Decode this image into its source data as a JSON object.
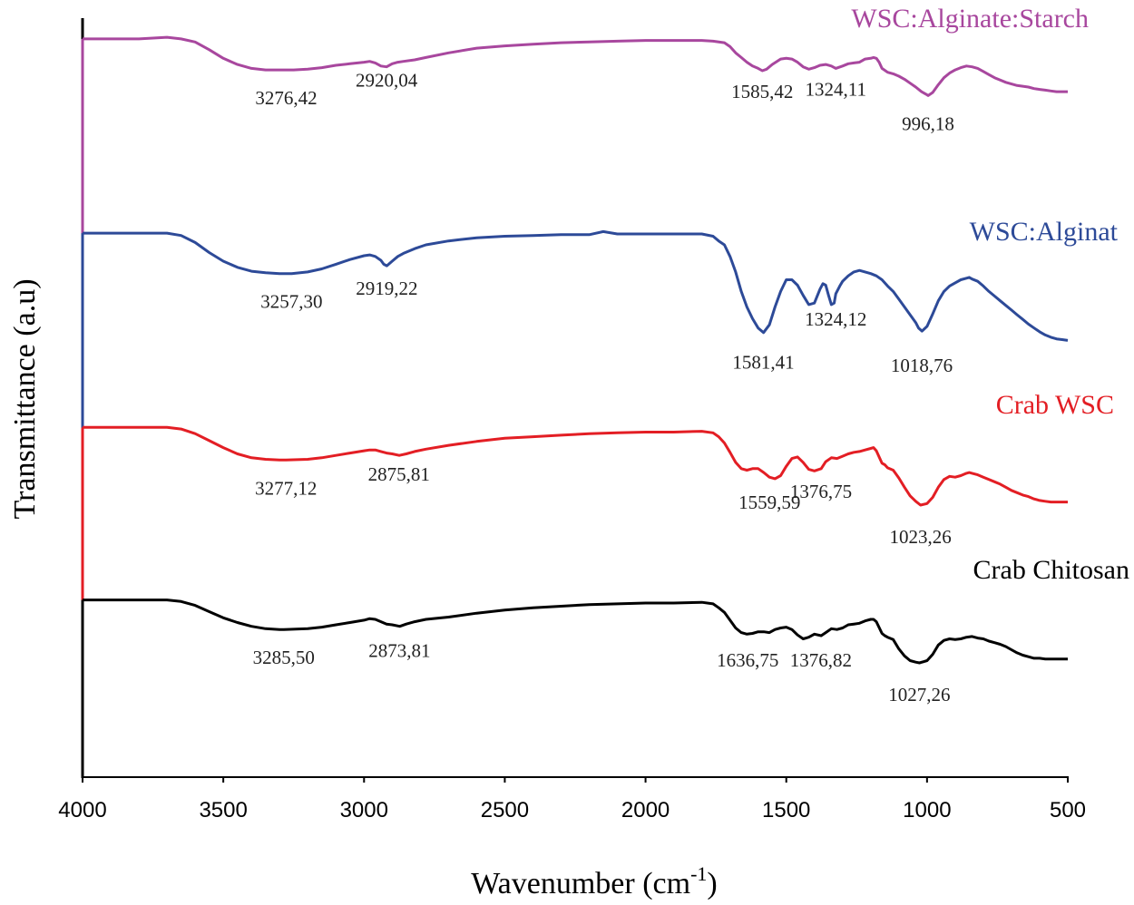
{
  "chart_data": {
    "type": "line",
    "title": "",
    "xlabel": "Wavenumber (cm",
    "xlabel_sup": "-1",
    "xlabel_end": ")",
    "ylabel": "Transmittance (a.u)",
    "xlim": [
      4000,
      500
    ],
    "x_reversed": true,
    "x_ticks": [
      4000,
      3500,
      3000,
      2500,
      2000,
      1500,
      1000,
      500
    ],
    "x_tick_labels": [
      "4000",
      "3500",
      "3000",
      "2500",
      "2000",
      "1500",
      "1000",
      "500"
    ],
    "ylim": [
      0,
      1
    ],
    "grid": false,
    "series": [
      {
        "name": "WSC:Alginate:Starch",
        "color": "#a8479e",
        "x": [
          4000,
          3900,
          3800,
          3700,
          3650,
          3600,
          3550,
          3500,
          3450,
          3400,
          3350,
          3300,
          3250,
          3200,
          3150,
          3100,
          3050,
          3000,
          2980,
          2960,
          2940,
          2920,
          2900,
          2880,
          2860,
          2820,
          2780,
          2700,
          2600,
          2500,
          2400,
          2300,
          2200,
          2100,
          2000,
          1900,
          1800,
          1760,
          1720,
          1700,
          1680,
          1660,
          1640,
          1620,
          1600,
          1585,
          1570,
          1550,
          1520,
          1500,
          1480,
          1460,
          1440,
          1420,
          1400,
          1380,
          1360,
          1340,
          1324,
          1300,
          1280,
          1260,
          1240,
          1220,
          1200,
          1190,
          1180,
          1170,
          1160,
          1140,
          1120,
          1100,
          1080,
          1060,
          1040,
          1020,
          1000,
          996,
          980,
          960,
          940,
          920,
          900,
          880,
          860,
          840,
          820,
          800,
          780,
          760,
          740,
          720,
          700,
          680,
          660,
          640,
          620,
          600,
          580,
          560,
          540,
          520,
          500
        ],
        "y": [
          0.95,
          0.95,
          0.95,
          0.952,
          0.95,
          0.946,
          0.936,
          0.925,
          0.917,
          0.912,
          0.91,
          0.91,
          0.91,
          0.911,
          0.913,
          0.916,
          0.918,
          0.92,
          0.921,
          0.919,
          0.915,
          0.914,
          0.918,
          0.92,
          0.921,
          0.923,
          0.926,
          0.932,
          0.938,
          0.941,
          0.943,
          0.945,
          0.946,
          0.947,
          0.948,
          0.948,
          0.948,
          0.947,
          0.945,
          0.94,
          0.932,
          0.926,
          0.92,
          0.915,
          0.912,
          0.909,
          0.911,
          0.917,
          0.924,
          0.925,
          0.924,
          0.92,
          0.914,
          0.911,
          0.913,
          0.916,
          0.917,
          0.915,
          0.912,
          0.915,
          0.918,
          0.919,
          0.92,
          0.924,
          0.925,
          0.926,
          0.925,
          0.92,
          0.912,
          0.907,
          0.905,
          0.902,
          0.898,
          0.893,
          0.888,
          0.882,
          0.878,
          0.877,
          0.881,
          0.891,
          0.9,
          0.906,
          0.91,
          0.913,
          0.915,
          0.914,
          0.912,
          0.908,
          0.904,
          0.9,
          0.897,
          0.894,
          0.892,
          0.89,
          0.889,
          0.888,
          0.886,
          0.885,
          0.884,
          0.883,
          0.882,
          0.882,
          0.882
        ],
        "peaks": [
          {
            "x": 3276.42,
            "label": "3276,42"
          },
          {
            "x": 2920.04,
            "label": "2920,04"
          },
          {
            "x": 1585.42,
            "label": "1585,42"
          },
          {
            "x": 1324.11,
            "label": "1324,11"
          },
          {
            "x": 996.18,
            "label": "996,18"
          }
        ]
      },
      {
        "name": "WSC:Alginat",
        "color": "#2d4a98",
        "x": [
          4000,
          3900,
          3800,
          3700,
          3650,
          3600,
          3550,
          3500,
          3450,
          3400,
          3350,
          3300,
          3257,
          3200,
          3150,
          3100,
          3050,
          3000,
          2980,
          2960,
          2940,
          2930,
          2919,
          2900,
          2880,
          2860,
          2820,
          2780,
          2700,
          2600,
          2500,
          2400,
          2300,
          2200,
          2150,
          2100,
          2000,
          1900,
          1800,
          1760,
          1740,
          1720,
          1700,
          1680,
          1660,
          1640,
          1620,
          1600,
          1581,
          1560,
          1540,
          1520,
          1500,
          1480,
          1460,
          1440,
          1420,
          1400,
          1380,
          1370,
          1360,
          1350,
          1340,
          1330,
          1324,
          1310,
          1300,
          1280,
          1260,
          1240,
          1220,
          1200,
          1180,
          1160,
          1140,
          1120,
          1100,
          1080,
          1060,
          1040,
          1030,
          1018,
          1000,
          980,
          960,
          940,
          920,
          900,
          880,
          860,
          850,
          840,
          820,
          800,
          780,
          760,
          740,
          720,
          700,
          680,
          660,
          640,
          620,
          600,
          580,
          560,
          540,
          520,
          500
        ],
        "y": [
          0.7,
          0.7,
          0.7,
          0.7,
          0.697,
          0.688,
          0.675,
          0.664,
          0.656,
          0.651,
          0.649,
          0.648,
          0.648,
          0.65,
          0.654,
          0.66,
          0.666,
          0.671,
          0.672,
          0.67,
          0.665,
          0.66,
          0.658,
          0.664,
          0.67,
          0.674,
          0.68,
          0.685,
          0.69,
          0.694,
          0.696,
          0.697,
          0.698,
          0.698,
          0.702,
          0.699,
          0.699,
          0.699,
          0.699,
          0.696,
          0.69,
          0.685,
          0.67,
          0.65,
          0.625,
          0.605,
          0.59,
          0.578,
          0.572,
          0.582,
          0.605,
          0.625,
          0.64,
          0.64,
          0.633,
          0.62,
          0.608,
          0.61,
          0.628,
          0.635,
          0.633,
          0.62,
          0.608,
          0.61,
          0.622,
          0.632,
          0.638,
          0.645,
          0.65,
          0.652,
          0.65,
          0.648,
          0.645,
          0.64,
          0.632,
          0.625,
          0.615,
          0.605,
          0.595,
          0.585,
          0.578,
          0.574,
          0.58,
          0.596,
          0.613,
          0.625,
          0.632,
          0.636,
          0.64,
          0.642,
          0.643,
          0.641,
          0.638,
          0.632,
          0.625,
          0.619,
          0.613,
          0.607,
          0.601,
          0.595,
          0.589,
          0.583,
          0.578,
          0.573,
          0.569,
          0.566,
          0.564,
          0.563,
          0.562
        ],
        "peaks": [
          {
            "x": 3257.3,
            "label": "3257,30"
          },
          {
            "x": 2919.22,
            "label": "2919,22"
          },
          {
            "x": 1581.41,
            "label": "1581,41"
          },
          {
            "x": 1324.12,
            "label": "1324,12"
          },
          {
            "x": 1018.76,
            "label": "1018,76"
          }
        ]
      },
      {
        "name": "Crab WSC",
        "color": "#e31e24",
        "x": [
          4000,
          3900,
          3800,
          3700,
          3650,
          3600,
          3550,
          3500,
          3450,
          3400,
          3350,
          3300,
          3277,
          3200,
          3150,
          3100,
          3050,
          3000,
          2980,
          2960,
          2940,
          2920,
          2900,
          2875,
          2850,
          2820,
          2780,
          2700,
          2600,
          2500,
          2400,
          2300,
          2200,
          2100,
          2000,
          1900,
          1800,
          1760,
          1740,
          1720,
          1700,
          1680,
          1660,
          1640,
          1620,
          1600,
          1580,
          1560,
          1540,
          1520,
          1500,
          1480,
          1460,
          1440,
          1420,
          1400,
          1376,
          1360,
          1340,
          1320,
          1300,
          1280,
          1260,
          1240,
          1220,
          1200,
          1190,
          1180,
          1160,
          1150,
          1140,
          1120,
          1100,
          1080,
          1060,
          1040,
          1023,
          1000,
          980,
          960,
          940,
          920,
          900,
          880,
          860,
          850,
          840,
          820,
          800,
          780,
          760,
          740,
          720,
          700,
          680,
          660,
          640,
          620,
          600,
          580,
          560,
          540,
          520,
          500
        ],
        "y": [
          0.45,
          0.45,
          0.45,
          0.45,
          0.448,
          0.442,
          0.433,
          0.424,
          0.416,
          0.411,
          0.409,
          0.408,
          0.408,
          0.409,
          0.411,
          0.414,
          0.417,
          0.42,
          0.421,
          0.421,
          0.419,
          0.417,
          0.416,
          0.414,
          0.416,
          0.419,
          0.422,
          0.427,
          0.432,
          0.436,
          0.438,
          0.44,
          0.442,
          0.443,
          0.444,
          0.444,
          0.445,
          0.443,
          0.438,
          0.43,
          0.418,
          0.405,
          0.397,
          0.395,
          0.397,
          0.397,
          0.392,
          0.386,
          0.384,
          0.388,
          0.4,
          0.41,
          0.412,
          0.405,
          0.396,
          0.394,
          0.397,
          0.406,
          0.411,
          0.41,
          0.413,
          0.416,
          0.418,
          0.419,
          0.421,
          0.423,
          0.424,
          0.42,
          0.404,
          0.402,
          0.398,
          0.395,
          0.385,
          0.373,
          0.362,
          0.355,
          0.35,
          0.352,
          0.36,
          0.373,
          0.383,
          0.387,
          0.386,
          0.388,
          0.391,
          0.392,
          0.391,
          0.389,
          0.386,
          0.383,
          0.38,
          0.377,
          0.373,
          0.369,
          0.366,
          0.363,
          0.361,
          0.358,
          0.356,
          0.355,
          0.354,
          0.354,
          0.354,
          0.354
        ],
        "peaks": [
          {
            "x": 3277.12,
            "label": "3277,12"
          },
          {
            "x": 2875.81,
            "label": "2875,81"
          },
          {
            "x": 1559.59,
            "label": "1559,59"
          },
          {
            "x": 1376.75,
            "label": "1376,75"
          },
          {
            "x": 1023.26,
            "label": "1023,26"
          }
        ]
      },
      {
        "name": "Crab Chitosan",
        "color": "#000000",
        "x": [
          4000,
          3900,
          3800,
          3700,
          3650,
          3600,
          3550,
          3500,
          3450,
          3400,
          3350,
          3300,
          3285,
          3200,
          3150,
          3100,
          3050,
          3000,
          2980,
          2960,
          2940,
          2920,
          2900,
          2873,
          2850,
          2820,
          2780,
          2700,
          2600,
          2500,
          2400,
          2300,
          2200,
          2100,
          2000,
          1900,
          1800,
          1760,
          1740,
          1720,
          1700,
          1680,
          1660,
          1640,
          1620,
          1600,
          1580,
          1560,
          1540,
          1520,
          1500,
          1480,
          1460,
          1440,
          1420,
          1400,
          1376,
          1360,
          1340,
          1320,
          1300,
          1280,
          1260,
          1240,
          1220,
          1200,
          1190,
          1180,
          1160,
          1150,
          1140,
          1120,
          1100,
          1080,
          1060,
          1040,
          1027,
          1000,
          980,
          960,
          940,
          920,
          900,
          880,
          860,
          840,
          820,
          800,
          780,
          760,
          740,
          720,
          700,
          680,
          660,
          640,
          620,
          600,
          580,
          560,
          540,
          520,
          500
        ],
        "y": [
          0.228,
          0.228,
          0.228,
          0.228,
          0.226,
          0.221,
          0.213,
          0.205,
          0.199,
          0.194,
          0.191,
          0.19,
          0.19,
          0.191,
          0.193,
          0.196,
          0.199,
          0.202,
          0.204,
          0.203,
          0.2,
          0.197,
          0.196,
          0.194,
          0.197,
          0.2,
          0.203,
          0.206,
          0.211,
          0.215,
          0.218,
          0.22,
          0.222,
          0.223,
          0.224,
          0.224,
          0.225,
          0.223,
          0.218,
          0.212,
          0.202,
          0.192,
          0.186,
          0.184,
          0.185,
          0.187,
          0.187,
          0.186,
          0.19,
          0.192,
          0.193,
          0.19,
          0.183,
          0.178,
          0.18,
          0.184,
          0.182,
          0.186,
          0.191,
          0.19,
          0.192,
          0.196,
          0.197,
          0.198,
          0.201,
          0.203,
          0.203,
          0.2,
          0.185,
          0.182,
          0.18,
          0.177,
          0.165,
          0.156,
          0.15,
          0.148,
          0.147,
          0.15,
          0.158,
          0.17,
          0.176,
          0.178,
          0.177,
          0.178,
          0.18,
          0.181,
          0.179,
          0.178,
          0.175,
          0.173,
          0.171,
          0.168,
          0.164,
          0.16,
          0.157,
          0.155,
          0.153,
          0.153,
          0.152,
          0.152,
          0.152,
          0.152,
          0.152
        ],
        "peaks": [
          {
            "x": 3285.5,
            "label": "3285,50"
          },
          {
            "x": 2873.81,
            "label": "2873,81"
          },
          {
            "x": 1636.75,
            "label": "1636,75"
          },
          {
            "x": 1376.82,
            "label": "1376,82"
          },
          {
            "x": 1027.26,
            "label": "1027,26"
          }
        ]
      }
    ]
  }
}
